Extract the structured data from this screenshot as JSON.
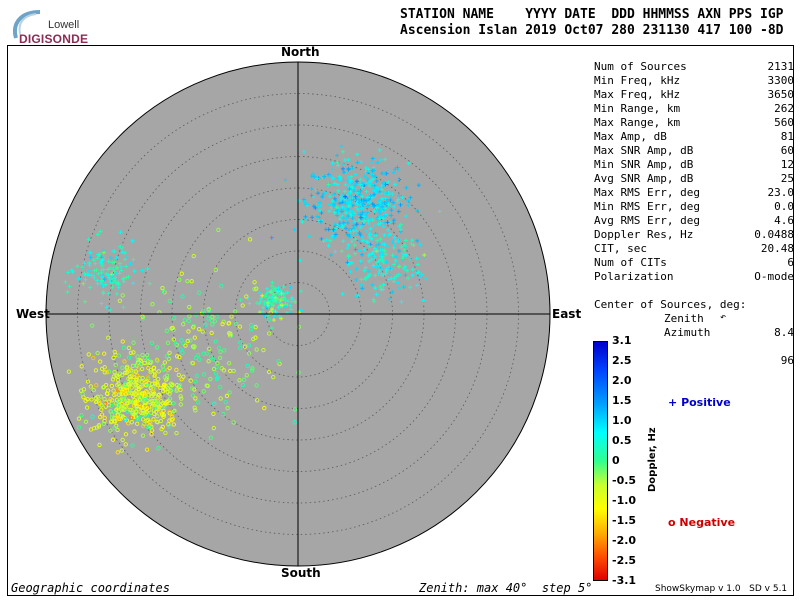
{
  "logo": {
    "line1": "Lowell",
    "line2": "DIGISONDE"
  },
  "header": {
    "line1": "STATION NAME    YYYY DATE  DDD HHMMSS AXN PPS IGP",
    "line2": "Ascension Islan 2019 Oct07 280 231130 417 100 -8D"
  },
  "directions": {
    "north": "North",
    "south": "South",
    "east": "East",
    "west": "West"
  },
  "stats": [
    {
      "label": "Num of Sources",
      "value": "2131"
    },
    {
      "label": "Min Freq, kHz",
      "value": "3300"
    },
    {
      "label": "Max Freq, kHz",
      "value": "3650"
    },
    {
      "label": "Min Range, km",
      "value": "262"
    },
    {
      "label": "Max Range, km",
      "value": "560"
    },
    {
      "label": "Max Amp, dB",
      "value": "81"
    },
    {
      "label": "Max SNR Amp, dB",
      "value": "60"
    },
    {
      "label": "Min SNR Amp, dB",
      "value": "12"
    },
    {
      "label": "Avg SNR Amp, dB",
      "value": "25"
    },
    {
      "label": "Max RMS Err, deg",
      "value": "23.0"
    },
    {
      "label": "Min RMS Err, deg",
      "value": "0.0"
    },
    {
      "label": "Avg RMS Err, deg",
      "value": "4.6"
    },
    {
      "label": "Doppler Res, Hz",
      "value": "0.0488"
    },
    {
      "label": "CIT, sec",
      "value": "20.48"
    },
    {
      "label": "Num of CITs",
      "value": "6"
    },
    {
      "label": "Polarization",
      "value": "O-mode"
    }
  ],
  "center": {
    "title": "Center of Sources, deg:",
    "zenith_label": "Zenith",
    "zenith_value": "8.4",
    "azimuth_label": "Azimuth",
    "azimuth_value": "96"
  },
  "colorbar": {
    "title": "Doppler, Hz",
    "ticks": [
      "3.1",
      "2.5",
      "2.0",
      "1.5",
      "1.0",
      "0.5",
      "0",
      "-0.5",
      "-1.0",
      "-1.5",
      "-2.0",
      "-2.5",
      "-3.1"
    ]
  },
  "legend": {
    "positive": "Positive",
    "negative": "Negative",
    "positive_color": "#0000cc",
    "negative_color": "#cc0000"
  },
  "footer": {
    "left": "Geographic coordinates",
    "middle": "Zenith: max 40°  step 5°",
    "right": "ShowSkymap v 1.0   SD v 5.1"
  },
  "chart_data": {
    "type": "scatter",
    "coordinate_system": "polar skymap (geographic)",
    "zenith_max_deg": 40,
    "zenith_step_deg": 5,
    "background_color": "#a6a6a6",
    "clusters": [
      {
        "description": "dense cyan cluster",
        "marker": "plus",
        "zenith_center": 20,
        "azimuth_center": 28,
        "doppler_center": 1.0,
        "count": 480,
        "spread_deg": 4.0
      },
      {
        "description": "teal-green cluster",
        "marker": "plus",
        "zenith_center": 16,
        "azimuth_center": 60,
        "doppler_center": 0.6,
        "count": 160,
        "spread_deg": 3.0
      },
      {
        "description": "small green cluster near center",
        "marker": "plus",
        "zenith_center": 4,
        "azimuth_center": 300,
        "doppler_center": 0.3,
        "count": 120,
        "spread_deg": 1.5
      },
      {
        "description": "light-green cluster west",
        "marker": "plus",
        "zenith_center": 31,
        "azimuth_center": 282,
        "doppler_center": 0.4,
        "count": 130,
        "spread_deg": 2.5
      },
      {
        "description": "yellow-green cluster south-west",
        "marker": "circle",
        "zenith_center": 29,
        "azimuth_center": 243,
        "doppler_center": -0.6,
        "count": 480,
        "spread_deg": 3.5
      },
      {
        "description": "scattered band between center and SW",
        "marker": "circle",
        "zenith_center": 16,
        "azimuth_center": 248,
        "doppler_center": -0.3,
        "count": 200,
        "spread_deg": 6.0
      }
    ],
    "colorbar": {
      "min": -3.1,
      "max": 3.1,
      "label": "Doppler, Hz"
    }
  }
}
